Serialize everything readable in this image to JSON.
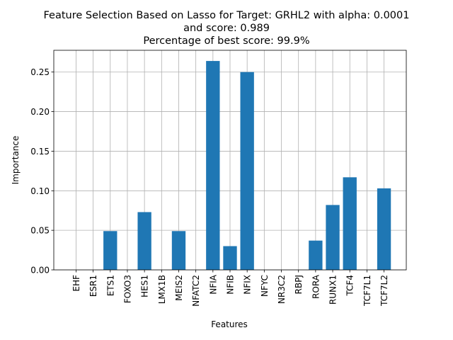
{
  "chart_data": {
    "type": "bar",
    "title_lines": [
      "Feature Selection Based on Lasso for Target: GRHL2 with alpha: 0.0001",
      "and score: 0.989",
      "Percentage of best score: 99.9%"
    ],
    "xlabel": "Features",
    "ylabel": "Importance",
    "categories": [
      "EHF",
      "ESR1",
      "ETS1",
      "FOXO3",
      "HES1",
      "LMX1B",
      "MEIS2",
      "NFATC2",
      "NFIA",
      "NFIB",
      "NFIX",
      "NFYC",
      "NR3C2",
      "RBPJ",
      "RORA",
      "RUNX1",
      "TCF4",
      "TCF7L1",
      "TCF7L2"
    ],
    "values": [
      0,
      0,
      0.049,
      0,
      0.073,
      0,
      0.049,
      0,
      0.264,
      0.03,
      0.25,
      0,
      0,
      0,
      0.037,
      0.082,
      0.117,
      0,
      0.103
    ],
    "ylim": [
      0,
      0.2775
    ],
    "yticks": [
      0.0,
      0.05,
      0.1,
      0.15,
      0.2,
      0.25
    ],
    "ytick_labels": [
      "0.00",
      "0.05",
      "0.10",
      "0.15",
      "0.20",
      "0.25"
    ],
    "grid": true,
    "bar_color": "#1f77b4"
  }
}
